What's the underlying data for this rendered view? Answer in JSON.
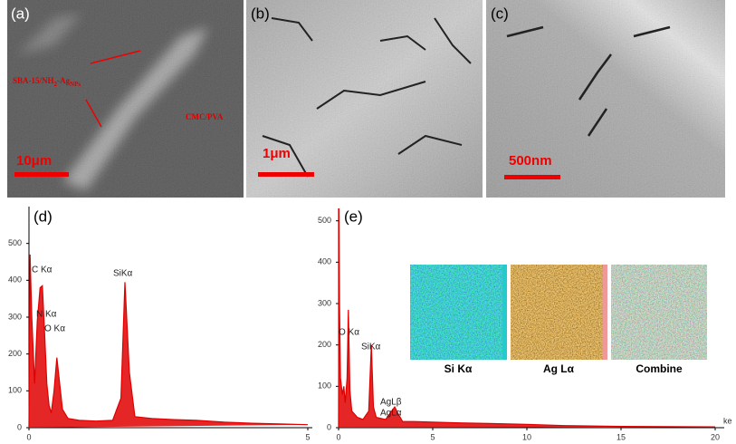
{
  "panels": [
    {
      "label": "(a)",
      "scale_bar": "10μm",
      "notes": {
        "composite": [
          "SBA-15/NH",
          "2",
          "-Ag",
          "NPs"
        ],
        "matrix": "CMC/PVA"
      }
    },
    {
      "label": "(b)",
      "scale_bar": "1μm"
    },
    {
      "label": "(c)",
      "scale_bar": "500nm"
    }
  ],
  "maps": [
    "Si Kα",
    "Ag Lα",
    "Combine"
  ],
  "chart_data": [
    {
      "type": "area",
      "title": "(d)",
      "color": "#e00000",
      "x": [
        0,
        0.02,
        0.05,
        0.1,
        0.15,
        0.2,
        0.24,
        0.28,
        0.32,
        0.36,
        0.4,
        0.45,
        0.5,
        0.55,
        0.6,
        0.7,
        0.9,
        1.2,
        1.5,
        1.65,
        1.72,
        1.8,
        1.9,
        2.2,
        2.6,
        3,
        3.5,
        4,
        4.5,
        5
      ],
      "values": [
        0,
        470,
        300,
        120,
        290,
        380,
        385,
        260,
        120,
        60,
        40,
        100,
        190,
        120,
        50,
        25,
        20,
        18,
        20,
        80,
        395,
        150,
        30,
        25,
        22,
        20,
        15,
        12,
        10,
        8
      ],
      "annotations": [
        "C Kα",
        "N Kα",
        "O Kα",
        "SiKα"
      ],
      "xlim": [
        0,
        5
      ],
      "xticks": [
        0,
        5
      ],
      "ylim": [
        0,
        600
      ],
      "yticks": [
        0,
        100,
        200,
        300,
        400,
        500
      ]
    },
    {
      "type": "area",
      "title": "(e)",
      "color": "#e00000",
      "xlabel": "ke",
      "x": [
        0,
        0.02,
        0.05,
        0.1,
        0.2,
        0.28,
        0.35,
        0.45,
        0.52,
        0.6,
        0.7,
        1.0,
        1.3,
        1.6,
        1.74,
        1.85,
        2.0,
        2.5,
        2.98,
        3.15,
        3.4,
        4,
        6,
        8,
        10,
        12,
        15,
        20
      ],
      "values": [
        0,
        530,
        300,
        120,
        80,
        100,
        60,
        120,
        285,
        90,
        40,
        25,
        20,
        40,
        200,
        50,
        25,
        20,
        50,
        35,
        15,
        15,
        12,
        10,
        8,
        5,
        3,
        2
      ],
      "annotations": [
        "O Kα",
        "SiKα",
        "AgLβ",
        "AgLα"
      ],
      "xlim": [
        0,
        20
      ],
      "xticks": [
        0,
        5,
        10,
        15,
        20
      ],
      "ylim": [
        0,
        530
      ],
      "yticks": [
        0,
        100,
        200,
        300,
        400,
        500
      ]
    }
  ]
}
